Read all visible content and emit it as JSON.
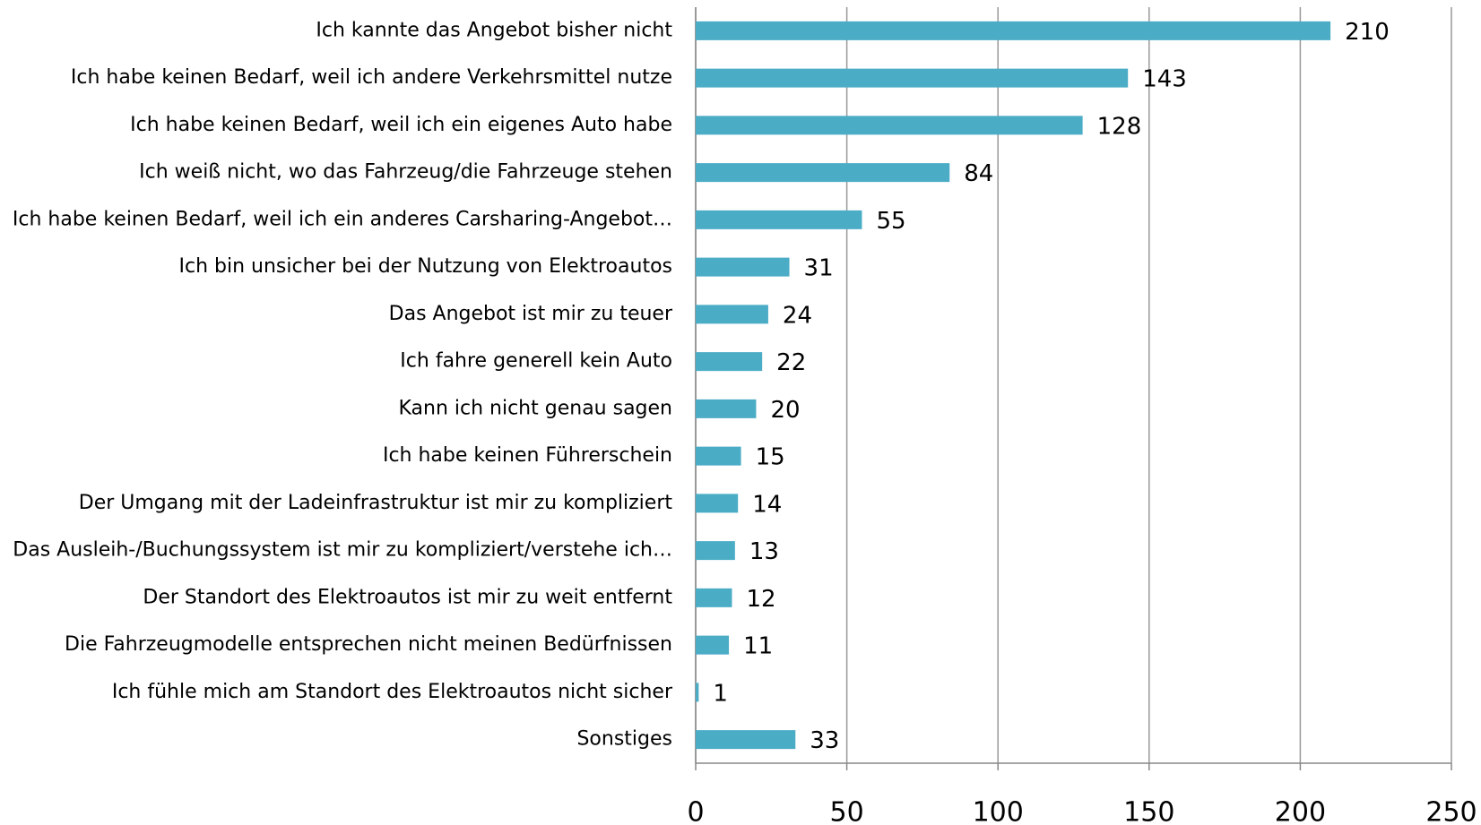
{
  "chart_data": {
    "type": "bar",
    "orientation": "horizontal",
    "categories": [
      "Ich kannte das Angebot bisher nicht",
      "Ich habe keinen Bedarf, weil ich andere Verkehrsmittel nutze",
      "Ich habe keinen Bedarf, weil ich ein eigenes Auto habe",
      "Ich weiß nicht, wo das Fahrzeug/die Fahrzeuge stehen",
      "Ich habe keinen Bedarf, weil ich ein anderes Carsharing-Angebot…",
      "Ich bin unsicher bei der Nutzung von Elektroautos",
      "Das Angebot ist mir zu teuer",
      "Ich fahre generell kein Auto",
      "Kann ich nicht genau sagen",
      "Ich habe keinen Führerschein",
      "Der Umgang mit der Ladeinfrastruktur ist mir zu kompliziert",
      "Das Ausleih-/Buchungssystem ist mir zu kompliziert/verstehe ich…",
      "Der Standort des Elektroautos ist mir zu weit entfernt",
      "Die Fahrzeugmodelle entsprechen nicht meinen Bedürfnissen",
      "Ich fühle mich am Standort des Elektroautos nicht sicher",
      "Sonstiges"
    ],
    "values": [
      210,
      143,
      128,
      84,
      55,
      31,
      24,
      22,
      20,
      15,
      14,
      13,
      12,
      11,
      1,
      33
    ],
    "color": "#4bacc6",
    "xlim": [
      0,
      250
    ],
    "xticks": [
      0,
      50,
      100,
      150,
      200,
      250
    ],
    "grid": true
  }
}
